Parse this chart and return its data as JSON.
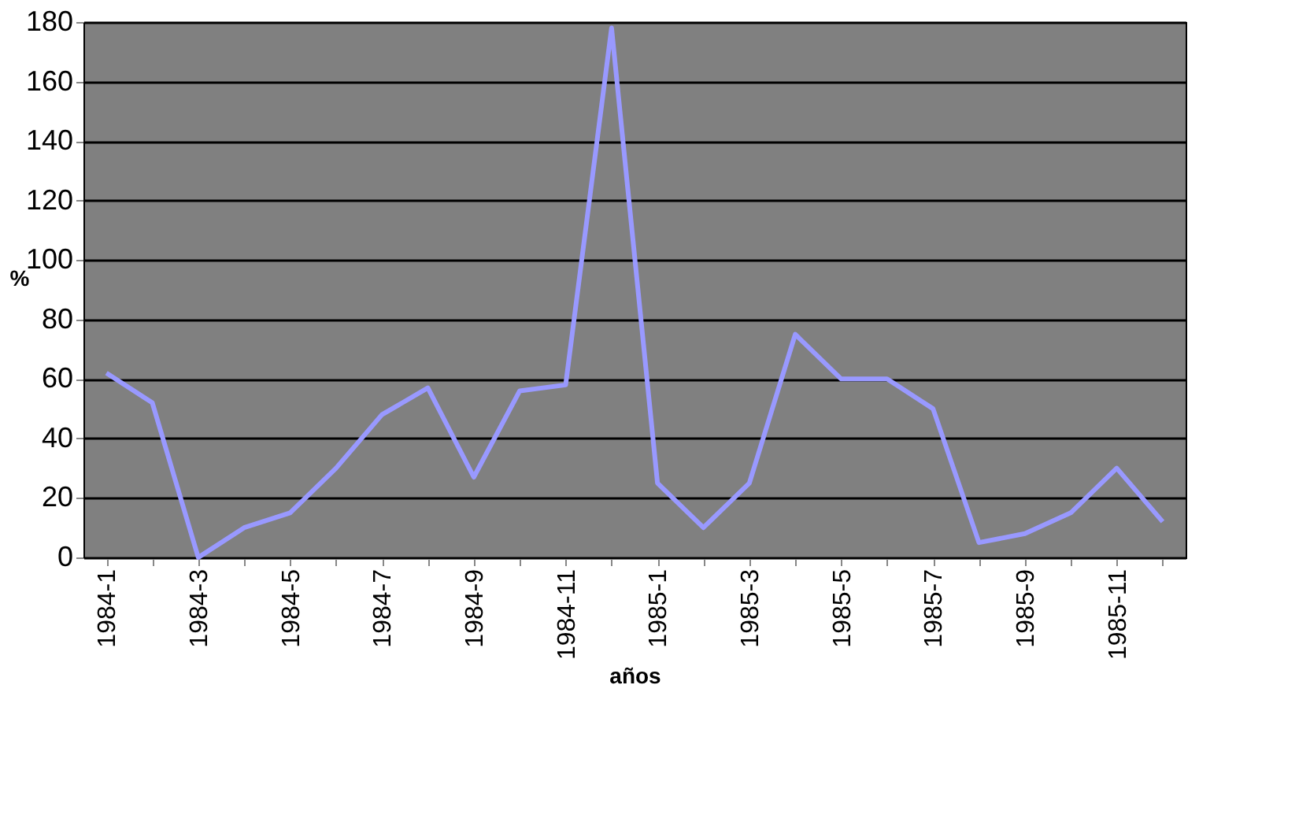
{
  "chart_data": {
    "type": "line",
    "xlabel": "años",
    "ylabel": "%",
    "categories": [
      "1984-1",
      null,
      "1984-3",
      null,
      "1984-5",
      null,
      "1984-7",
      null,
      "1984-9",
      null,
      "1984-11",
      null,
      "1985-1",
      null,
      "1985-3",
      null,
      "1985-5",
      null,
      "1985-7",
      null,
      "1985-9",
      null,
      "1985-11",
      null
    ],
    "series": [
      {
        "color": "#9999ff",
        "values": [
          62,
          52,
          0,
          10,
          15,
          30,
          48,
          57,
          27,
          56,
          58,
          178,
          25,
          10,
          25,
          75,
          60,
          60,
          50,
          5,
          8,
          15,
          30,
          12
        ]
      }
    ],
    "ylim": [
      0,
      180
    ],
    "yticks": [
      0,
      20,
      40,
      60,
      80,
      100,
      120,
      140,
      160,
      180
    ],
    "grid": "y",
    "marker": "none",
    "line_style": "solid"
  }
}
